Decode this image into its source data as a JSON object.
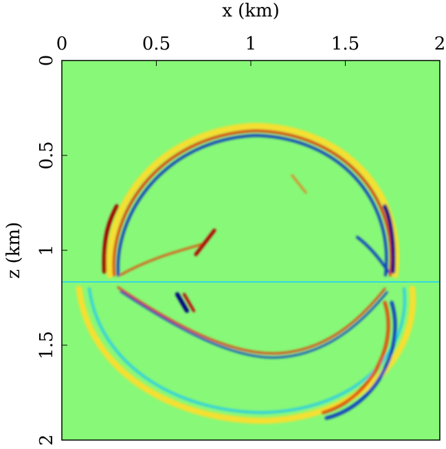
{
  "chart_data": {
    "type": "image",
    "x_label": "x (km)",
    "y_label": "z (km)",
    "xlim": [
      0,
      2
    ],
    "xticks": [
      0,
      0.5,
      1,
      1.5,
      2
    ],
    "ylim": [
      2,
      0
    ],
    "yticks": [
      0,
      0.5,
      1,
      1.5,
      2
    ],
    "background": "#88f878"
  }
}
